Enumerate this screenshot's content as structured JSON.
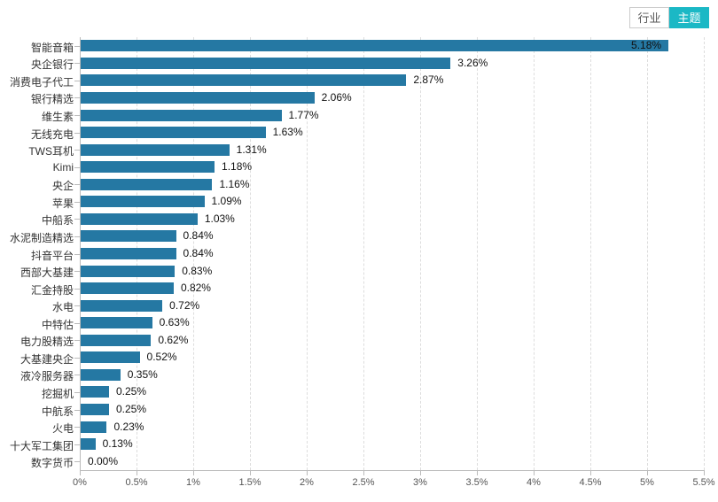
{
  "toolbar": {
    "industry_label": "行业",
    "theme_label": "主题",
    "active_tab": "主题",
    "accent_color": "#1bb8c5"
  },
  "chart_data": {
    "type": "bar",
    "orientation": "horizontal",
    "title": "",
    "xlabel": "",
    "ylabel": "",
    "categories": [
      "智能音箱",
      "央企银行",
      "消费电子代工",
      "银行精选",
      "维生素",
      "无线充电",
      "TWS耳机",
      "Kimi",
      "央企",
      "苹果",
      "中船系",
      "水泥制造精选",
      "抖音平台",
      "西部大基建",
      "汇金持股",
      "水电",
      "中特估",
      "电力股精选",
      "大基建央企",
      "液冷服务器",
      "挖掘机",
      "中航系",
      "火电",
      "十大军工集团",
      "数字货币"
    ],
    "values": [
      5.18,
      3.26,
      2.87,
      2.06,
      1.77,
      1.63,
      1.31,
      1.18,
      1.16,
      1.09,
      1.03,
      0.84,
      0.84,
      0.83,
      0.82,
      0.72,
      0.63,
      0.62,
      0.52,
      0.35,
      0.25,
      0.25,
      0.23,
      0.13,
      0.0
    ],
    "value_labels": [
      "5.18%",
      "3.26%",
      "2.87%",
      "2.06%",
      "1.77%",
      "1.63%",
      "1.31%",
      "1.18%",
      "1.16%",
      "1.09%",
      "1.03%",
      "0.84%",
      "0.84%",
      "0.83%",
      "0.82%",
      "0.72%",
      "0.63%",
      "0.62%",
      "0.52%",
      "0.35%",
      "0.25%",
      "0.25%",
      "0.23%",
      "0.13%",
      "0.00%"
    ],
    "xlim": [
      0,
      5.5
    ],
    "x_ticks": [
      "0%",
      "0.5%",
      "1%",
      "1.5%",
      "2%",
      "2.5%",
      "3%",
      "3.5%",
      "4%",
      "4.5%",
      "5%",
      "5.5%"
    ],
    "x_tick_values": [
      0,
      0.5,
      1,
      1.5,
      2,
      2.5,
      3,
      3.5,
      4,
      4.5,
      5,
      5.5
    ],
    "grid": "vertical-dashed",
    "legend": "none",
    "bar_color": "#2578a3"
  }
}
